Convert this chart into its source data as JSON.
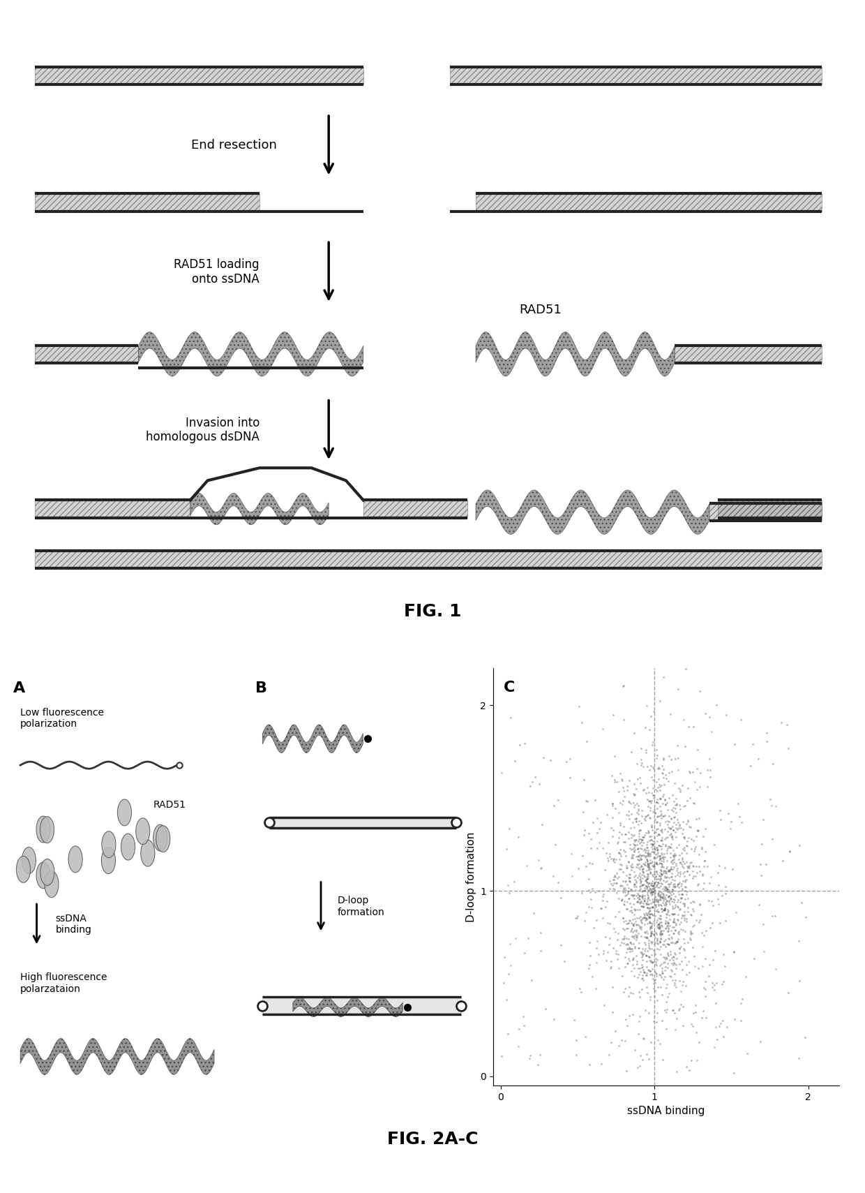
{
  "fig1_title": "FIG. 1",
  "fig2_title": "FIG. 2A-C",
  "bg_color": "#ffffff",
  "text_color": "#000000",
  "dna_color": "#333333",
  "step1_label": "End resection",
  "step2_label": "RAD51 loading\nonto ssDNA",
  "step3_label": "Invasion into\nhomologous dsDNA",
  "rad51_label": "RAD51",
  "panel_A_label": "A",
  "panel_B_label": "B",
  "panel_C_label": "C",
  "low_fluo_label": "Low fluorescence\npolarization",
  "rad51_panel_label": "RAD51",
  "ssdna_binding_label": "ssDNA\nbinding",
  "high_fluo_label": "High fluorescence\npolarzataion",
  "dloop_label": "D-loop\nformation",
  "xlabel_C": "ssDNA binding",
  "ylabel_C": "D-loop formation",
  "xticks_C": [
    0.0,
    1.0,
    2.0
  ],
  "yticks_C": [
    0.0,
    1.0,
    2.0
  ],
  "crosshair_x": 1.0,
  "crosshair_y": 1.0,
  "n_scatter_points": 2000
}
